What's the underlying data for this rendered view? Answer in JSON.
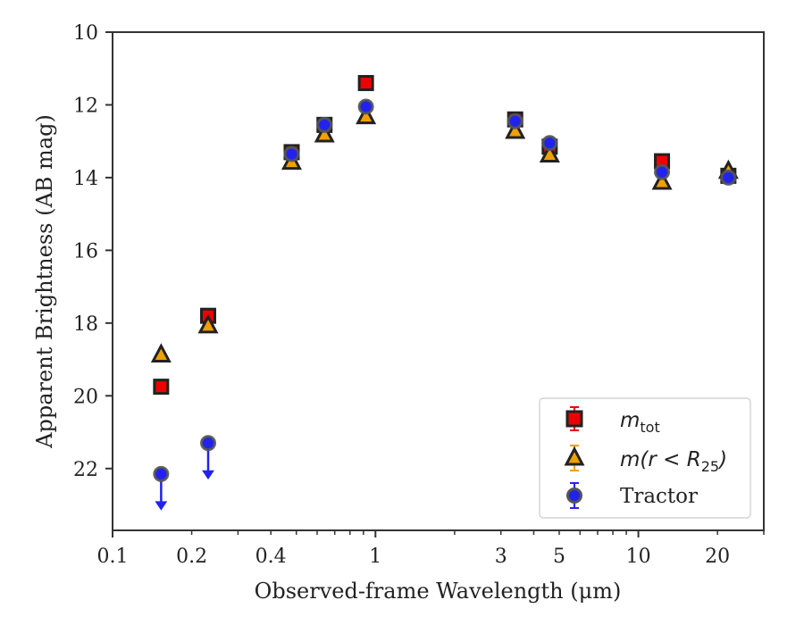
{
  "chart_data": {
    "type": "scatter",
    "xlabel": "Observed-frame Wavelength (μm)",
    "ylabel": "Apparent Brightness (AB mag)",
    "xscale": "log",
    "xlim": [
      0.1,
      30
    ],
    "ylim": [
      23.7,
      10
    ],
    "y_inverted": true,
    "x_ticks": [
      0.1,
      0.2,
      0.4,
      1,
      3,
      5,
      10,
      20
    ],
    "x_tick_labels": [
      "0.1",
      "0.2",
      "0.4",
      "1",
      "3",
      "5",
      "10",
      "20"
    ],
    "y_ticks": [
      10,
      12,
      14,
      16,
      18,
      20,
      22
    ],
    "y_tick_labels": [
      "10",
      "12",
      "14",
      "16",
      "18",
      "20",
      "22"
    ],
    "grid": false,
    "legend_position": "bottom-right",
    "series": [
      {
        "name": "m_tot",
        "marker": "square",
        "color": "#ee0000",
        "edge_color": "#222222",
        "errorbar_color": "#ee0000",
        "x": [
          0.153,
          0.231,
          0.48,
          0.64,
          0.92,
          3.4,
          4.6,
          12.3,
          22
        ],
        "y": [
          19.75,
          17.8,
          13.3,
          12.55,
          11.4,
          12.4,
          13.15,
          13.55,
          13.95
        ]
      },
      {
        "name": "m(r < R25)",
        "marker": "triangle",
        "color": "#f0a000",
        "edge_color": "#222222",
        "errorbar_color": "#f0a000",
        "x": [
          0.153,
          0.231,
          0.48,
          0.64,
          0.92,
          3.4,
          4.6,
          12.3,
          22
        ],
        "y": [
          18.85,
          18.05,
          13.55,
          12.8,
          12.3,
          12.7,
          13.35,
          14.1,
          13.8
        ]
      },
      {
        "name": "Tractor",
        "marker": "circle",
        "color": "#2222ee",
        "edge_color": "#555555",
        "errorbar_color": "#2222ee",
        "x": [
          0.153,
          0.231,
          0.48,
          0.64,
          0.92,
          3.4,
          4.6,
          12.3,
          22
        ],
        "y": [
          22.15,
          21.3,
          13.35,
          12.55,
          12.05,
          12.45,
          13.05,
          13.85,
          14.0
        ],
        "upper_limits": [
          true,
          true,
          false,
          false,
          false,
          false,
          false,
          false,
          false
        ]
      }
    ]
  },
  "legend": {
    "entries": [
      {
        "label_math": "m",
        "label_sub": "tot"
      },
      {
        "label_math": "m(r < R",
        "label_sub": "25",
        "label_tail": ")"
      },
      {
        "label_text": "Tractor"
      }
    ]
  }
}
